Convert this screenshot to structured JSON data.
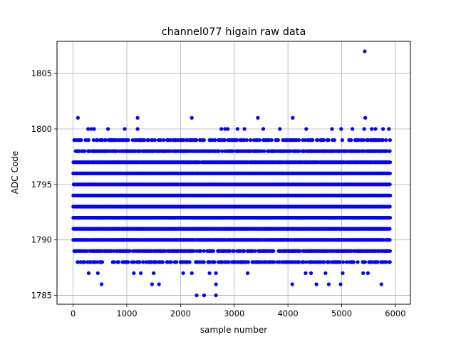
{
  "chart_data": {
    "type": "scatter",
    "title": "channel077 higain raw data",
    "xlabel": "sample number",
    "ylabel": "ADC Code",
    "xlim": [
      -300,
      6280
    ],
    "ylim": [
      1784.2,
      1807.9
    ],
    "xticks": [
      0,
      1000,
      2000,
      3000,
      4000,
      5000,
      6000
    ],
    "yticks": [
      1785,
      1790,
      1795,
      1800,
      1805
    ],
    "grid": true,
    "marker_color": "#0000ff",
    "n_samples": 5900,
    "dense_levels": [
      1788,
      1789,
      1790,
      1791,
      1792,
      1793,
      1794,
      1795,
      1796,
      1797,
      1798,
      1799
    ],
    "sparse_levels": {
      "1787": [
        290,
        460,
        1130,
        1260,
        1500,
        2050,
        2210,
        2540,
        2660,
        3250,
        4330,
        4430,
        4700,
        5020,
        5400,
        5490
      ],
      "1786": [
        530,
        1470,
        1600,
        2660,
        4080,
        4530,
        4760,
        4980,
        5740
      ],
      "1785": [
        2300,
        2440,
        2660
      ]
    },
    "high_points": {
      "1800": [
        280,
        340,
        390,
        650,
        960,
        1200,
        2760,
        2830,
        2880,
        3060,
        3190,
        3540,
        3850,
        4340,
        4820,
        4990,
        5200,
        5420,
        5560,
        5630,
        5770,
        5880
      ],
      "1801": [
        90,
        1200,
        2210,
        3440,
        4090,
        5440
      ],
      "1807": [
        5430
      ]
    }
  }
}
